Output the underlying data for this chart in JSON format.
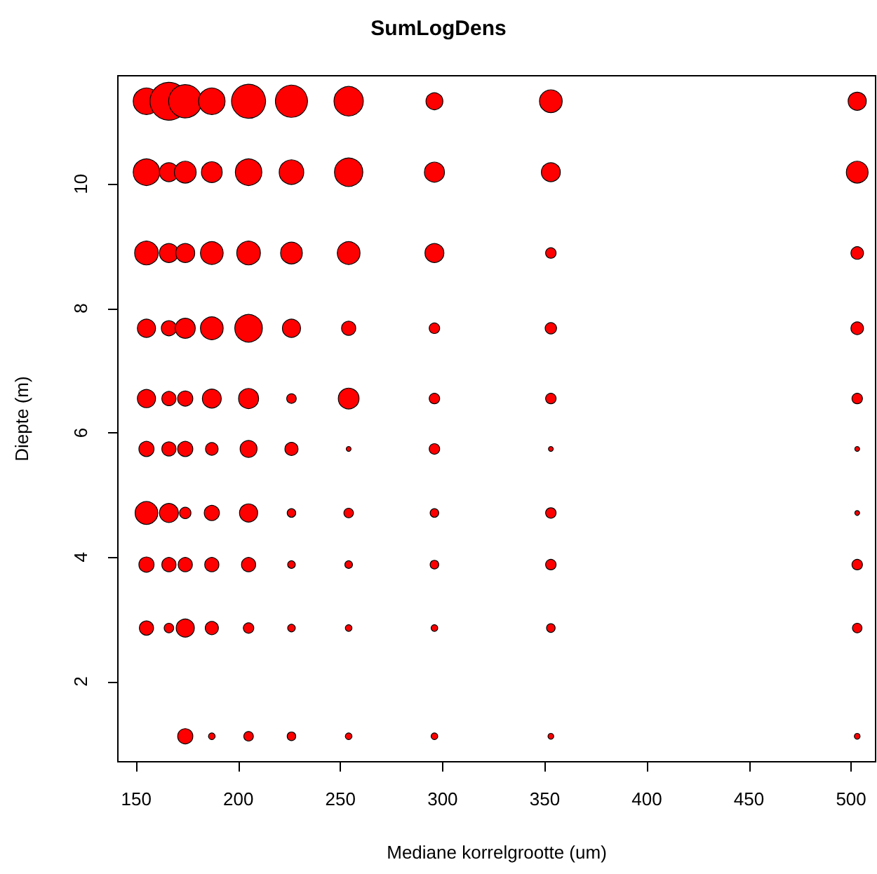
{
  "chart_data": {
    "type": "bubble",
    "title": "SumLogDens",
    "xlabel": "Mediane korrelgrootte (um)",
    "ylabel": "Diepte (m)",
    "xlim": [
      141,
      512
    ],
    "xticks": [
      150,
      200,
      250,
      300,
      350,
      400,
      450,
      500
    ],
    "ylim": [
      0.71,
      11.74
    ],
    "yticks": [
      2,
      4,
      6,
      8,
      10
    ],
    "grid": false,
    "marker": "circle",
    "series": [
      {
        "color": "#ff0000",
        "x": [
          155,
          166,
          174,
          187,
          205,
          226,
          254,
          296,
          353,
          503,
          155,
          166,
          174,
          187,
          205,
          226,
          254,
          296,
          353,
          503,
          155,
          166,
          174,
          187,
          205,
          226,
          254,
          296,
          353,
          503,
          155,
          166,
          174,
          187,
          205,
          226,
          254,
          296,
          353,
          503,
          155,
          166,
          174,
          187,
          205,
          226,
          254,
          296,
          353,
          503,
          155,
          166,
          174,
          187,
          205,
          226,
          254,
          296,
          353,
          503,
          155,
          166,
          174,
          187,
          205,
          226,
          254,
          296,
          353,
          503,
          155,
          166,
          174,
          187,
          205,
          226,
          254,
          296,
          353,
          503,
          155,
          166,
          174,
          187,
          205,
          226,
          254,
          296,
          353,
          503,
          174,
          187,
          205,
          226,
          254,
          296,
          353,
          503
        ],
        "values": [
          11.33,
          11.33,
          11.33,
          11.33,
          11.33,
          11.33,
          11.33,
          11.33,
          11.33,
          11.33,
          10.19,
          10.19,
          10.19,
          10.19,
          10.19,
          10.19,
          10.19,
          10.19,
          10.19,
          10.19,
          8.89,
          8.89,
          8.89,
          8.89,
          8.89,
          8.89,
          8.89,
          8.89,
          8.89,
          8.89,
          7.68,
          7.68,
          7.68,
          7.68,
          7.68,
          7.68,
          7.68,
          7.68,
          7.68,
          7.68,
          6.55,
          6.55,
          6.55,
          6.55,
          6.55,
          6.55,
          6.55,
          6.55,
          6.55,
          6.55,
          5.74,
          5.74,
          5.74,
          5.74,
          5.74,
          5.74,
          5.74,
          5.74,
          5.74,
          5.74,
          4.71,
          4.71,
          4.71,
          4.71,
          4.71,
          4.71,
          4.71,
          4.71,
          4.71,
          4.71,
          3.88,
          3.88,
          3.88,
          3.88,
          3.88,
          3.88,
          3.88,
          3.88,
          3.88,
          3.88,
          2.86,
          2.86,
          2.86,
          2.86,
          2.86,
          2.86,
          2.86,
          2.86,
          2.86,
          2.86,
          1.12,
          1.12,
          1.12,
          1.12,
          1.12,
          1.12,
          1.12,
          1.12
        ],
        "sizes": [
          0.49,
          1,
          0.77,
          0.49,
          0.81,
          0.72,
          0.6,
          0.2,
          0.36,
          0.23,
          0.49,
          0.25,
          0.33,
          0.3,
          0.49,
          0.42,
          0.56,
          0.28,
          0.25,
          0.33,
          0.39,
          0.25,
          0.25,
          0.36,
          0.39,
          0.33,
          0.36,
          0.25,
          0.076,
          0.11,
          0.23,
          0.16,
          0.28,
          0.36,
          0.53,
          0.23,
          0.14,
          0.076,
          0.09,
          0.11,
          0.23,
          0.14,
          0.16,
          0.25,
          0.28,
          0.063,
          0.3,
          0.076,
          0.076,
          0.076,
          0.16,
          0.14,
          0.16,
          0.11,
          0.2,
          0.12,
          0.016,
          0.076,
          0.016,
          0.016,
          0.36,
          0.25,
          0.09,
          0.16,
          0.23,
          0.051,
          0.063,
          0.051,
          0.076,
          0.016,
          0.16,
          0.14,
          0.14,
          0.14,
          0.14,
          0.04,
          0.04,
          0.051,
          0.076,
          0.076,
          0.14,
          0.063,
          0.23,
          0.12,
          0.076,
          0.04,
          0.031,
          0.031,
          0.051,
          0.063,
          0.16,
          0.031,
          0.063,
          0.051,
          0.031,
          0.031,
          0.023,
          0.023
        ]
      }
    ]
  }
}
